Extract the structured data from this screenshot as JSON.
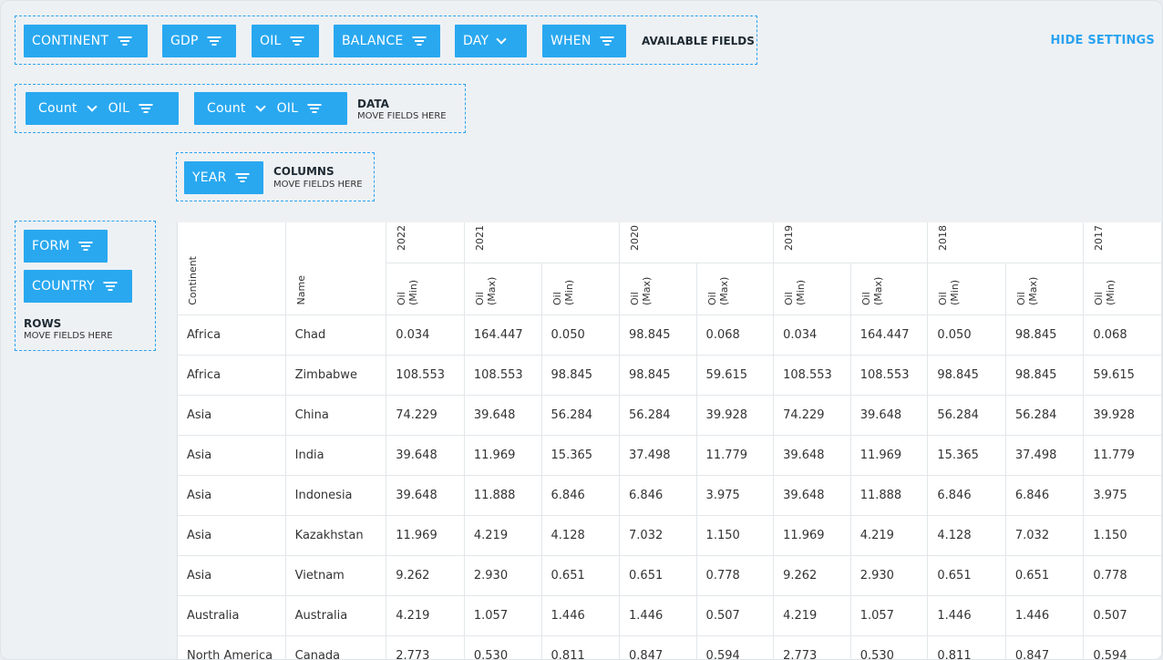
{
  "available": {
    "fields": [
      {
        "label": "CONTINENT",
        "icon": "filter-icon"
      },
      {
        "label": "GDP",
        "icon": "filter-icon"
      },
      {
        "label": "OIL",
        "icon": "filter-icon"
      },
      {
        "label": "BALANCE",
        "icon": "filter-icon"
      },
      {
        "label": "DAY",
        "icon": "chevron-down-icon"
      },
      {
        "label": "WHEN",
        "icon": "filter-icon"
      }
    ],
    "label": "AVAILABLE FIELDS"
  },
  "hide_settings": "HIDE SETTINGS",
  "data_zone": {
    "fields": [
      {
        "agg": "Count",
        "field": "OIL"
      },
      {
        "agg": "Count",
        "field": "OIL"
      }
    ],
    "label": "DATA",
    "sub": "MOVE FIELDS HERE"
  },
  "columns_zone": {
    "fields": [
      {
        "label": "YEAR"
      }
    ],
    "label": "COLUMNS",
    "sub": "MOVE FIELDS HERE"
  },
  "rows_zone": {
    "fields": [
      {
        "label": "FORM"
      },
      {
        "label": "COUNTRY"
      }
    ],
    "label": "ROWS",
    "sub": "MOVE FIELDS HERE"
  },
  "grid": {
    "row_headers": [
      "Continent",
      "Name"
    ],
    "years": [
      "2022",
      "2021",
      "2020",
      "2019",
      "2018",
      "2017"
    ],
    "measures": [
      "Oil (Min)",
      "Oil (Max)",
      "Oil (Min)",
      "Oil (Max)",
      "Oil (Max)",
      "Oil (Min)",
      "Oil (Max)",
      "Oil (Min)",
      "Oil (Max)",
      "Oil (Min)"
    ],
    "rows": [
      [
        "Africa",
        "Chad",
        "0.034",
        "164.447",
        "0.050",
        "98.845",
        "0.068",
        "0.034",
        "164.447",
        "0.050",
        "98.845",
        "0.068"
      ],
      [
        "Africa",
        "Zimbabwe",
        "108.553",
        "108.553",
        "98.845",
        "98.845",
        "59.615",
        "108.553",
        "108.553",
        "98.845",
        "98.845",
        "59.615"
      ],
      [
        "Asia",
        "China",
        "74.229",
        "39.648",
        "56.284",
        "56.284",
        "39.928",
        "74.229",
        "39.648",
        "56.284",
        "56.284",
        "39.928"
      ],
      [
        "Asia",
        "India",
        "39.648",
        "11.969",
        "15.365",
        "37.498",
        "11.779",
        "39.648",
        "11.969",
        "15.365",
        "37.498",
        "11.779"
      ],
      [
        "Asia",
        "Indonesia",
        "39.648",
        "11.888",
        "6.846",
        "6.846",
        "3.975",
        "39.648",
        "11.888",
        "6.846",
        "6.846",
        "3.975"
      ],
      [
        "Asia",
        "Kazakhstan",
        "11.969",
        "4.219",
        "4.128",
        "7.032",
        "1.150",
        "11.969",
        "4.219",
        "4.128",
        "7.032",
        "1.150"
      ],
      [
        "Asia",
        "Vietnam",
        "9.262",
        "2.930",
        "0.651",
        "0.651",
        "0.778",
        "9.262",
        "2.930",
        "0.651",
        "0.651",
        "0.778"
      ],
      [
        "Australia",
        "Australia",
        "4.219",
        "1.057",
        "1.446",
        "1.446",
        "0.507",
        "4.219",
        "1.057",
        "1.446",
        "1.446",
        "0.507"
      ],
      [
        "North America",
        "Canada",
        "2.773",
        "0.530",
        "0.811",
        "0.847",
        "0.594",
        "2.773",
        "0.530",
        "0.811",
        "0.847",
        "0.594"
      ]
    ]
  }
}
